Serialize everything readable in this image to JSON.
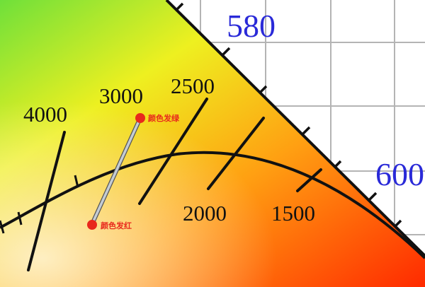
{
  "diagram": {
    "wavelength_labels": [
      "580",
      "600"
    ],
    "isotherm_labels": [
      "4000",
      "3000",
      "2500",
      "2000",
      "1500"
    ],
    "annotations": {
      "green_shift": "颜色发绿",
      "red_shift": "颜色发红"
    },
    "colors": {
      "boundary": "#111111",
      "grid": "#b4b4b4",
      "wavelength_text": "#2a2ad8",
      "annotation": "#e8281c",
      "marker_line": "#b8c0c8",
      "gradient": [
        "#6fe03a",
        "#f0f020",
        "#ffa010",
        "#ff2a00"
      ]
    }
  }
}
